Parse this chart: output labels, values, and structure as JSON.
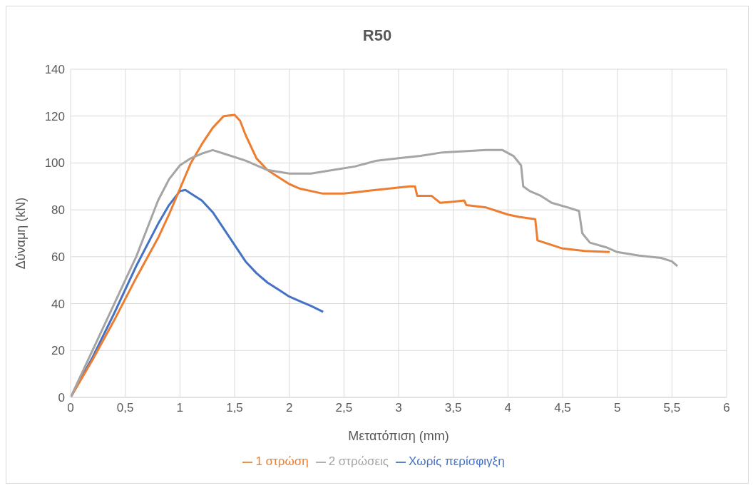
{
  "chart_data": {
    "type": "line",
    "title": "R50",
    "xlabel": "Μετατόπιση (mm)",
    "ylabel": "Δύναμη (kN)",
    "xlim": [
      0,
      6
    ],
    "xticks": [
      0,
      {
        "value": 0.5,
        "label": "0,5"
      },
      1,
      {
        "value": 1.5,
        "label": "1,5"
      },
      2,
      {
        "value": 2.5,
        "label": "2,5"
      },
      3,
      {
        "value": 3.5,
        "label": "3,5"
      },
      4,
      {
        "value": 4.5,
        "label": "4,5"
      },
      5,
      {
        "value": 5.5,
        "label": "5,5"
      },
      6
    ],
    "ylim": [
      0,
      140
    ],
    "yticks": [
      0,
      20,
      40,
      60,
      80,
      100,
      120,
      140
    ],
    "grid": true,
    "legend": "bottom",
    "marker": "none",
    "line_style": "solid",
    "series": [
      {
        "name": "Χωρίς περίσφιγξη",
        "color": "#4472c4",
        "x": [
          0,
          0.2,
          0.4,
          0.6,
          0.8,
          0.9,
          1.0,
          1.05,
          1.1,
          1.2,
          1.3,
          1.4,
          1.5,
          1.6,
          1.7,
          1.8,
          1.9,
          2.0,
          2.1,
          2.2,
          2.31
        ],
        "values": [
          0,
          17,
          36,
          56,
          74,
          82,
          88,
          88.5,
          87,
          84,
          79,
          72,
          65,
          58,
          53,
          49,
          46,
          43,
          41,
          39,
          36.5
        ]
      },
      {
        "name": "1 στρώση",
        "color": "#ed7d31",
        "x": [
          0,
          0.2,
          0.4,
          0.6,
          0.8,
          0.9,
          1.0,
          1.1,
          1.2,
          1.3,
          1.4,
          1.5,
          1.55,
          1.6,
          1.7,
          1.8,
          1.9,
          2.0,
          2.1,
          2.3,
          2.5,
          2.7,
          2.9,
          3.1,
          3.15,
          3.17,
          3.3,
          3.38,
          3.5,
          3.6,
          3.62,
          3.8,
          4.0,
          4.1,
          4.25,
          4.27,
          4.4,
          4.5,
          4.7,
          4.93
        ],
        "values": [
          0,
          16,
          33,
          51,
          68,
          78,
          89,
          100,
          108,
          115,
          120,
          120.5,
          118,
          112,
          102,
          97,
          94,
          91,
          89,
          87,
          87,
          88,
          89,
          90,
          90,
          86,
          86,
          83,
          83.5,
          84,
          82,
          81,
          78,
          77,
          76,
          67,
          65,
          63.5,
          62.5,
          62
        ]
      },
      {
        "name": "2 στρώσεις",
        "color": "#a5a5a5",
        "x": [
          0,
          0.2,
          0.4,
          0.5,
          0.6,
          0.7,
          0.8,
          0.9,
          1.0,
          1.1,
          1.2,
          1.3,
          1.4,
          1.6,
          1.8,
          2.0,
          2.2,
          2.4,
          2.6,
          2.8,
          3.0,
          3.2,
          3.4,
          3.6,
          3.8,
          3.95,
          4.05,
          4.12,
          4.14,
          4.2,
          4.3,
          4.4,
          4.55,
          4.65,
          4.68,
          4.75,
          4.9,
          5.0,
          5.2,
          5.4,
          5.5,
          5.55
        ],
        "values": [
          0,
          20,
          40,
          50,
          60,
          72,
          84,
          93,
          99,
          102,
          104,
          105.5,
          104,
          101,
          97,
          95.5,
          95.5,
          97,
          98.5,
          101,
          102,
          103,
          104.5,
          105,
          105.5,
          105.5,
          103,
          99,
          90,
          88,
          86,
          83,
          81,
          79.5,
          70,
          66,
          64,
          62,
          60.5,
          59.5,
          58,
          56
        ]
      }
    ]
  }
}
